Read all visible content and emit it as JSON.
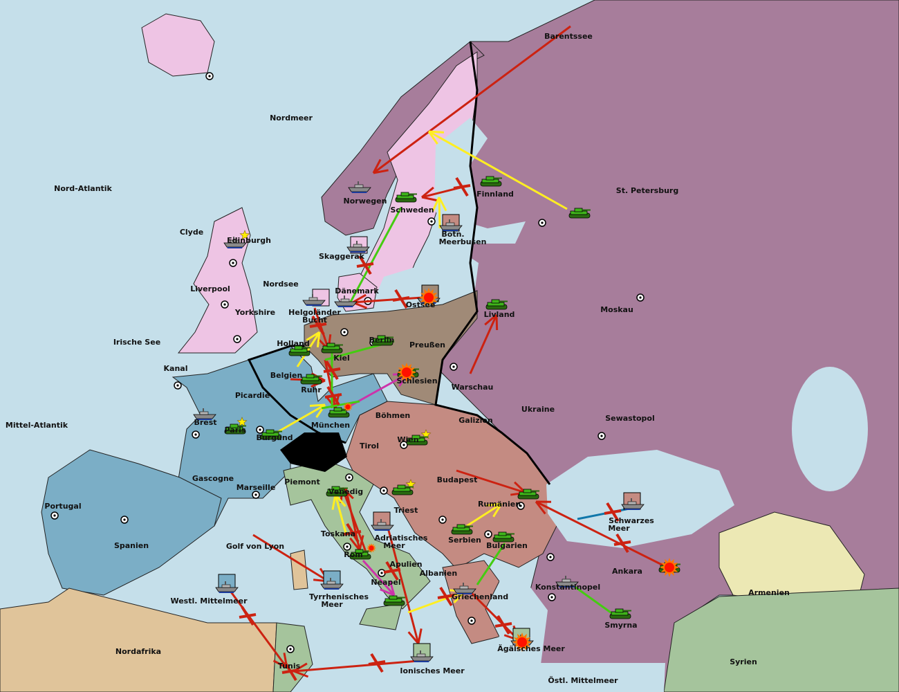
{
  "map": {
    "labels": [
      "Barentssee",
      "Nordmeer",
      "Nord-Atlantik",
      "St. Petersburg",
      "Finnland",
      "Norwegen",
      "Schweden",
      "Botn.",
      "Meerbusen",
      "Clyde",
      "Edinburgh",
      "Skaggerak",
      "Liverpool",
      "Nordsee",
      "Dänemark",
      "Ostsee",
      "Moskau",
      "Yorkshire",
      "Helgoländer",
      "Bucht",
      "Livland",
      "Irische See",
      "Holland",
      "Berlin",
      "Preußen",
      "Kiel",
      "Kanal",
      "Belgien",
      "Schlesien",
      "Warschau",
      "Ruhr",
      "Picardie",
      "Ukraine",
      "Böhmen",
      "Mittel-Atlantik",
      "Brest",
      "Galizien",
      "Sewastopol",
      "München",
      "Paris",
      "Burgund",
      "Wien",
      "Tirol",
      "Gascogne",
      "Budapest",
      "Piemont",
      "Marseille",
      "Venedig",
      "Rumänien",
      "Portugal",
      "Triest",
      "Schwarzes",
      "Meer",
      "Toskana",
      "Adriatisches",
      "Meer",
      "Serbien",
      "Spanien",
      "Golf von Lyon",
      "Bulgarien",
      "Rom",
      "Apulien",
      "Ankara",
      "Albanien",
      "Neapel",
      "Konstantinopel",
      "Armenien",
      "Tyrrhenisches",
      "Meer",
      "Griechenland",
      "Westl. Mittelmeer",
      "Smyrna",
      "Nordafrika",
      "Ägäisches Meer",
      "Tunis",
      "Ionisches Meer",
      "Syrien",
      "Östl. Mittelmeer"
    ]
  },
  "colors": {
    "sea": "#c5dfea",
    "russia_turkey": "#a77d9b",
    "england": "#eec4e4",
    "france": "#7baec6",
    "germany": "#a08a77",
    "austria": "#c48b82",
    "italy": "#a5c49c",
    "neutral_africa": "#e0c49a",
    "armenia": "#ece8b4",
    "order_move_failed": "#cc2211",
    "order_support": "#44cc11",
    "order_move_yellow": "#ffee22",
    "order_convoy": "#cc33aa",
    "order_blue": "#1177aa"
  },
  "icons": {
    "army": "army-tank-icon",
    "fleet": "fleet-ship-icon",
    "supply_center": "supply-center-icon",
    "home_center": "star-icon",
    "dislodged": "explosion-icon",
    "failed": "cross-icon"
  }
}
